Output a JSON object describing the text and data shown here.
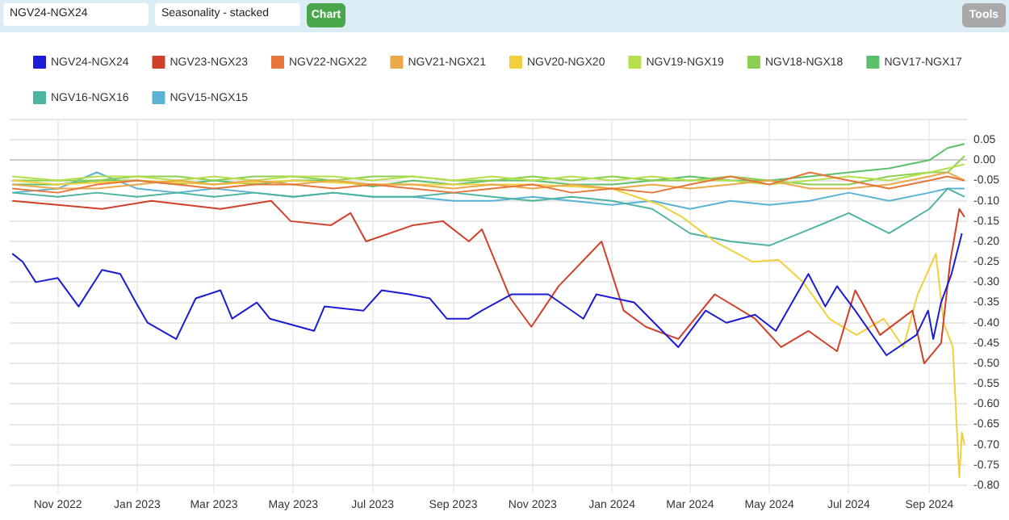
{
  "chart_data": {
    "type": "line",
    "annotations": [
      "NGV24-NGX24",
      "Seasonality - stacked",
      "Chart",
      "Tools"
    ],
    "legend": "top",
    "grid": true,
    "marker": "none",
    "line_style": "solid",
    "xlim": [
      "2022-09-25",
      "2024-09-30"
    ],
    "ylim": [
      -0.82,
      0.1
    ],
    "xticks": [
      {
        "value": "2022-11-01",
        "label": "Nov 2022"
      },
      {
        "value": "2023-01-01",
        "label": "Jan 2023"
      },
      {
        "value": "2023-03-01",
        "label": "Mar 2023"
      },
      {
        "value": "2023-05-01",
        "label": "May 2023"
      },
      {
        "value": "2023-07-01",
        "label": "Jul 2023"
      },
      {
        "value": "2023-09-01",
        "label": "Sep 2023"
      },
      {
        "value": "2023-11-01",
        "label": "Nov 2023"
      },
      {
        "value": "2024-01-01",
        "label": "Jan 2024"
      },
      {
        "value": "2024-03-01",
        "label": "Mar 2024"
      },
      {
        "value": "2024-05-01",
        "label": "May 2024"
      },
      {
        "value": "2024-07-01",
        "label": "Jul 2024"
      },
      {
        "value": "2024-09-01",
        "label": "Sep 2024"
      }
    ],
    "yticks": [
      {
        "value": 0.1,
        "label": null
      },
      {
        "value": 0.05,
        "label": "0.05"
      },
      {
        "value": 0,
        "label": "0.00"
      },
      {
        "value": -0.05,
        "label": "-0.05"
      },
      {
        "value": -0.1,
        "label": "-0.10"
      },
      {
        "value": -0.15,
        "label": "-0.15"
      },
      {
        "value": -0.2,
        "label": "-0.20"
      },
      {
        "value": -0.25,
        "label": "-0.25"
      },
      {
        "value": -0.3,
        "label": "-0.30"
      },
      {
        "value": -0.35,
        "label": "-0.35"
      },
      {
        "value": -0.4,
        "label": "-0.40"
      },
      {
        "value": -0.45,
        "label": "-0.45"
      },
      {
        "value": -0.5,
        "label": "-0.50"
      },
      {
        "value": -0.55,
        "label": "-0.55"
      },
      {
        "value": -0.6,
        "label": "-0.60"
      },
      {
        "value": -0.65,
        "label": "-0.65"
      },
      {
        "value": -0.7,
        "label": "-0.70"
      },
      {
        "value": -0.75,
        "label": "-0.75"
      },
      {
        "value": -0.8,
        "label": "-0.80"
      }
    ],
    "x": [
      "2022-09-27",
      "2022-11-01",
      "2022-12-01",
      "2023-01-01",
      "2023-02-01",
      "2023-03-01",
      "2023-04-01",
      "2023-05-01",
      "2023-06-01",
      "2023-07-01",
      "2023-08-01",
      "2023-09-01",
      "2023-10-01",
      "2023-11-01",
      "2023-12-01",
      "2024-01-01",
      "2024-02-01",
      "2024-03-01",
      "2024-04-01",
      "2024-05-01",
      "2024-06-01",
      "2024-07-01",
      "2024-08-01",
      "2024-09-01",
      "2024-09-15",
      "2024-09-28"
    ],
    "series": [
      {
        "name": "NGV24-NGX24",
        "color": "#1c1cd4",
        "x": [
          "2022-09-27",
          "2022-10-05",
          "2022-10-15",
          "2022-11-01",
          "2022-11-17",
          "2022-12-05",
          "2022-12-19",
          "2022-12-31",
          "2023-01-09",
          "2023-01-31",
          "2023-02-15",
          "2023-03-06",
          "2023-03-15",
          "2023-04-03",
          "2023-04-13",
          "2023-05-17",
          "2023-05-25",
          "2023-06-24",
          "2023-07-08",
          "2023-07-29",
          "2023-08-14",
          "2023-08-27",
          "2023-09-13",
          "2023-09-23",
          "2023-10-16",
          "2023-11-13",
          "2023-12-10",
          "2023-12-20",
          "2024-01-18",
          "2024-02-21",
          "2024-03-13",
          "2024-03-29",
          "2024-04-20",
          "2024-05-06",
          "2024-05-31",
          "2024-06-13",
          "2024-06-22",
          "2024-07-06",
          "2024-07-30",
          "2024-08-22",
          "2024-08-31",
          "2024-09-04",
          "2024-09-10",
          "2024-09-18",
          "2024-09-26"
        ],
        "values": [
          -0.23,
          -0.25,
          -0.3,
          -0.29,
          -0.36,
          -0.27,
          -0.28,
          -0.35,
          -0.4,
          -0.44,
          -0.34,
          -0.32,
          -0.39,
          -0.35,
          -0.39,
          -0.42,
          -0.36,
          -0.37,
          -0.32,
          -0.33,
          -0.34,
          -0.39,
          -0.39,
          -0.37,
          -0.33,
          -0.33,
          -0.39,
          -0.33,
          -0.35,
          -0.46,
          -0.37,
          -0.4,
          -0.38,
          -0.42,
          -0.28,
          -0.36,
          -0.31,
          -0.37,
          -0.48,
          -0.43,
          -0.37,
          -0.44,
          -0.35,
          -0.28,
          -0.18
        ]
      },
      {
        "name": "NGV23-NGX23",
        "color": "#d0402a",
        "x": [
          "2022-09-27",
          "2022-11-01",
          "2022-12-05",
          "2023-01-12",
          "2023-03-06",
          "2023-04-14",
          "2023-04-29",
          "2023-05-30",
          "2023-06-14",
          "2023-06-26",
          "2023-08-01",
          "2023-08-24",
          "2023-09-13",
          "2023-09-23",
          "2023-10-15",
          "2023-10-31",
          "2023-11-21",
          "2023-12-24",
          "2024-01-10",
          "2024-01-27",
          "2024-02-21",
          "2024-03-20",
          "2024-04-20",
          "2024-05-10",
          "2024-05-31",
          "2024-06-22",
          "2024-07-06",
          "2024-07-25",
          "2024-08-19",
          "2024-08-28",
          "2024-09-10",
          "2024-09-17",
          "2024-09-24",
          "2024-09-28"
        ],
        "values": [
          -0.1,
          -0.11,
          -0.12,
          -0.1,
          -0.12,
          -0.1,
          -0.15,
          -0.16,
          -0.13,
          -0.2,
          -0.16,
          -0.15,
          -0.2,
          -0.17,
          -0.34,
          -0.41,
          -0.31,
          -0.2,
          -0.37,
          -0.41,
          -0.44,
          -0.33,
          -0.39,
          -0.46,
          -0.42,
          -0.47,
          -0.32,
          -0.43,
          -0.37,
          -0.5,
          -0.45,
          -0.25,
          -0.12,
          -0.14
        ]
      },
      {
        "name": "NGV22-NGX22",
        "color": "#e8763a",
        "values": [
          -0.07,
          -0.08,
          -0.06,
          -0.05,
          -0.06,
          -0.07,
          -0.06,
          -0.06,
          -0.07,
          -0.06,
          -0.07,
          -0.08,
          -0.07,
          -0.06,
          -0.08,
          -0.07,
          -0.08,
          -0.06,
          -0.04,
          -0.06,
          -0.03,
          -0.05,
          -0.07,
          -0.05,
          -0.04,
          -0.05
        ]
      },
      {
        "name": "NGV21-NGX21",
        "color": "#eaa84a",
        "values": [
          -0.06,
          -0.07,
          -0.07,
          -0.06,
          -0.05,
          -0.06,
          -0.05,
          -0.06,
          -0.05,
          -0.06,
          -0.06,
          -0.07,
          -0.06,
          -0.07,
          -0.06,
          -0.07,
          -0.06,
          -0.07,
          -0.06,
          -0.05,
          -0.07,
          -0.07,
          -0.06,
          -0.04,
          -0.03,
          -0.05
        ]
      },
      {
        "name": "NGV20-NGX20",
        "color": "#f2d03b",
        "x": [
          "2022-09-27",
          "2022-11-01",
          "2023-01-01",
          "2023-03-01",
          "2023-05-01",
          "2023-07-01",
          "2023-09-01",
          "2023-11-01",
          "2024-01-01",
          "2024-02-07",
          "2024-02-24",
          "2024-03-20",
          "2024-04-18",
          "2024-05-08",
          "2024-05-27",
          "2024-06-16",
          "2024-07-07",
          "2024-07-28",
          "2024-08-12",
          "2024-08-23",
          "2024-09-06",
          "2024-09-12",
          "2024-09-19",
          "2024-09-24",
          "2024-09-26",
          "2024-09-28"
        ],
        "values": [
          -0.05,
          -0.06,
          -0.05,
          -0.06,
          -0.05,
          -0.06,
          -0.06,
          -0.06,
          -0.07,
          -0.11,
          -0.14,
          -0.2,
          -0.25,
          -0.245,
          -0.3,
          -0.39,
          -0.43,
          -0.39,
          -0.46,
          -0.33,
          -0.23,
          -0.4,
          -0.46,
          -0.78,
          -0.67,
          -0.7
        ]
      },
      {
        "name": "NGV19-NGX19",
        "color": "#b6df4c",
        "values": [
          -0.04,
          -0.05,
          -0.04,
          -0.04,
          -0.05,
          -0.04,
          -0.05,
          -0.04,
          -0.04,
          -0.05,
          -0.04,
          -0.05,
          -0.04,
          -0.05,
          -0.04,
          -0.05,
          -0.04,
          -0.05,
          -0.05,
          -0.06,
          -0.05,
          -0.04,
          -0.05,
          -0.03,
          -0.02,
          -0.01
        ]
      },
      {
        "name": "NGV18-NGX18",
        "color": "#8ccf50",
        "values": [
          -0.05,
          -0.05,
          -0.05,
          -0.04,
          -0.04,
          -0.05,
          -0.04,
          -0.04,
          -0.05,
          -0.04,
          -0.04,
          -0.05,
          -0.05,
          -0.04,
          -0.05,
          -0.04,
          -0.05,
          -0.05,
          -0.04,
          -0.05,
          -0.06,
          -0.06,
          -0.04,
          -0.03,
          -0.03,
          0.01
        ]
      },
      {
        "name": "NGV17-NGX17",
        "color": "#5cbf6a",
        "values": [
          -0.06,
          -0.06,
          -0.05,
          -0.05,
          -0.06,
          -0.05,
          -0.06,
          -0.05,
          -0.05,
          -0.065,
          -0.05,
          -0.06,
          -0.05,
          -0.05,
          -0.06,
          -0.06,
          -0.05,
          -0.04,
          -0.05,
          -0.05,
          -0.04,
          -0.03,
          -0.02,
          0,
          0.03,
          0.04
        ]
      },
      {
        "name": "NGV16-NGX16",
        "color": "#4db59f",
        "values": [
          -0.08,
          -0.09,
          -0.08,
          -0.09,
          -0.08,
          -0.09,
          -0.08,
          -0.09,
          -0.08,
          -0.09,
          -0.09,
          -0.08,
          -0.09,
          -0.1,
          -0.09,
          -0.1,
          -0.12,
          -0.18,
          -0.2,
          -0.21,
          -0.17,
          -0.13,
          -0.18,
          -0.12,
          -0.07,
          -0.09
        ]
      },
      {
        "name": "NGV15-NGX15",
        "color": "#5ab2d6",
        "values": [
          -0.08,
          -0.07,
          -0.03,
          -0.07,
          -0.08,
          -0.07,
          -0.08,
          -0.09,
          -0.08,
          -0.09,
          -0.09,
          -0.1,
          -0.1,
          -0.09,
          -0.1,
          -0.11,
          -0.1,
          -0.12,
          -0.1,
          -0.11,
          -0.1,
          -0.08,
          -0.1,
          -0.08,
          -0.07,
          -0.07
        ]
      }
    ]
  }
}
